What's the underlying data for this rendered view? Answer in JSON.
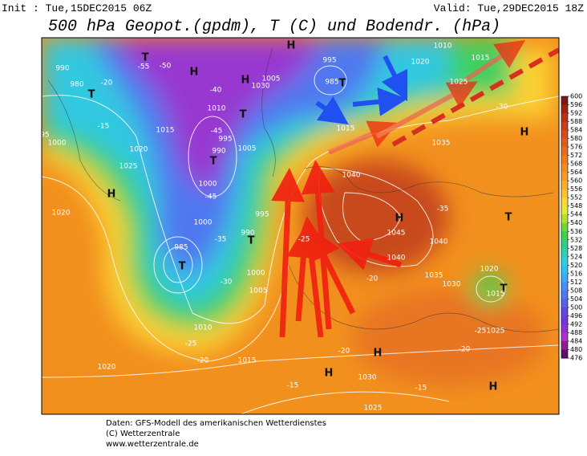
{
  "header": {
    "init": "Init : Tue,15DEC2015 06Z",
    "valid": "Valid: Tue,29DEC2015 18Z",
    "title": "500 hPa Geopot.(gpdm), T (C) und Bodendr. (hPa)"
  },
  "map": {
    "labels": [
      "H",
      "H",
      "H",
      "H",
      "H",
      "H",
      "H",
      "H",
      "H",
      "T",
      "T",
      "T",
      "T",
      "T",
      "T",
      "T",
      "T",
      "T",
      "990",
      "980",
      "1010",
      "1015",
      "1020",
      "995",
      "1025",
      "1035",
      "1040",
      "1045",
      "1040",
      "1040",
      "1035",
      "1030",
      "1015",
      "1020",
      "1025",
      "1015",
      "1020",
      "1030",
      "1025",
      "1010",
      "1005",
      "1000",
      "995",
      "990",
      "1000",
      "985",
      "1015",
      "1020",
      "1025",
      "1020",
      "995",
      "1000",
      "990",
      "995",
      "1000",
      "1005",
      "1030",
      "1005",
      "1010",
      "1015",
      "985",
      "-20",
      "-15",
      "-40",
      "-45",
      "-45",
      "-35",
      "-30",
      "-25",
      "-20",
      "-20",
      "-15",
      "-15",
      "-20",
      "-25",
      "-30",
      "-35",
      "-20",
      "-25",
      "-55",
      "-50"
    ]
  },
  "colorbar": {
    "ticks": [
      600,
      596,
      592,
      588,
      584,
      580,
      576,
      572,
      568,
      564,
      560,
      556,
      552,
      548,
      544,
      540,
      536,
      532,
      528,
      524,
      520,
      516,
      512,
      508,
      504,
      500,
      496,
      492,
      488,
      484,
      480,
      476
    ],
    "colors": [
      "#7a1a10",
      "#9c2410",
      "#b83018",
      "#cc3c1c",
      "#d84c1c",
      "#e05c1c",
      "#e86c1c",
      "#ef7c20",
      "#f48c24",
      "#f89c28",
      "#fbae2c",
      "#fdc230",
      "#fbd834",
      "#e8e830",
      "#b0e030",
      "#70d838",
      "#40d050",
      "#30d080",
      "#30d0b0",
      "#30d0d8",
      "#30c0f0",
      "#40a8f8",
      "#4890f8",
      "#5078f0",
      "#5860e8",
      "#6048e0",
      "#7038d8",
      "#9030d0",
      "#b030c8",
      "#902090",
      "#601070"
    ]
  },
  "footer": {
    "line1": "Daten: GFS-Modell des amerikanischen Wetterdienstes",
    "line2": "(C) Wetterzentrale",
    "line3": "www.wetterzentrale.de"
  }
}
